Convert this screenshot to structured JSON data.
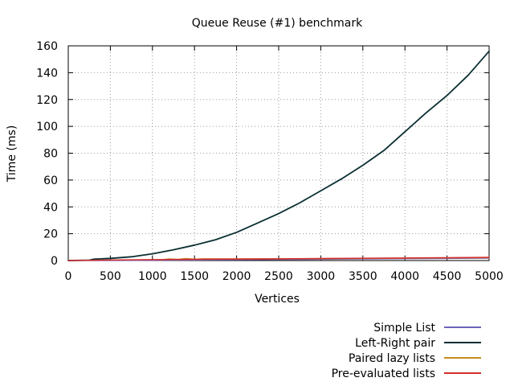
{
  "chart_data": {
    "type": "line",
    "title": "Queue Reuse (#1) benchmark",
    "xlabel": "Vertices",
    "ylabel": "Time (ms)",
    "xlim": [
      0,
      5000
    ],
    "ylim": [
      0,
      160
    ],
    "xticks": [
      0,
      500,
      1000,
      1500,
      2000,
      2500,
      3000,
      3500,
      4000,
      4500,
      5000
    ],
    "yticks": [
      0,
      20,
      40,
      60,
      80,
      100,
      120,
      140,
      160
    ],
    "grid": true,
    "legend_position": "bottom-right",
    "series": [
      {
        "name": "Simple List",
        "color": "#6b64b8",
        "x": [
          0,
          500,
          1000,
          1500,
          2000,
          2500,
          3000,
          3500,
          4000,
          4500,
          5000
        ],
        "y": [
          0,
          0.1,
          0.2,
          0.4,
          0.6,
          0.8,
          1.0,
          1.2,
          1.4,
          1.6,
          1.8
        ]
      },
      {
        "name": "Left-Right pair",
        "color": "#0b2f32",
        "x": [
          0,
          250,
          300,
          500,
          750,
          1000,
          1250,
          1500,
          1750,
          2000,
          2250,
          2500,
          2750,
          3000,
          3250,
          3500,
          3750,
          4000,
          4250,
          4500,
          4750,
          5000
        ],
        "y": [
          0,
          0.3,
          1.0,
          1.6,
          2.8,
          5.0,
          8.0,
          11.5,
          15.5,
          21.0,
          28.0,
          35.0,
          43.0,
          52.0,
          61.0,
          71.0,
          82.0,
          96.0,
          110.0,
          123.0,
          138.0,
          156.0
        ]
      },
      {
        "name": "Paired lazy lists",
        "color": "#c48c1a",
        "x": [
          1100,
          1200,
          1300,
          1400,
          1500,
          1600,
          2000,
          2500,
          3000,
          3500,
          4000,
          4500,
          5000
        ],
        "y": [
          0.5,
          1.2,
          0.8,
          1.5,
          1.0,
          1.3,
          1.2,
          1.3,
          1.4,
          1.6,
          1.8,
          2.0,
          2.2
        ]
      },
      {
        "name": "Pre-evaluated lists",
        "color": "#d42c2c",
        "x": [
          0,
          500,
          1000,
          1500,
          2000,
          2500,
          3000,
          3500,
          4000,
          4500,
          5000
        ],
        "y": [
          0,
          0.4,
          0.7,
          0.9,
          1.1,
          1.3,
          1.5,
          1.7,
          1.9,
          2.1,
          2.4
        ]
      }
    ]
  }
}
